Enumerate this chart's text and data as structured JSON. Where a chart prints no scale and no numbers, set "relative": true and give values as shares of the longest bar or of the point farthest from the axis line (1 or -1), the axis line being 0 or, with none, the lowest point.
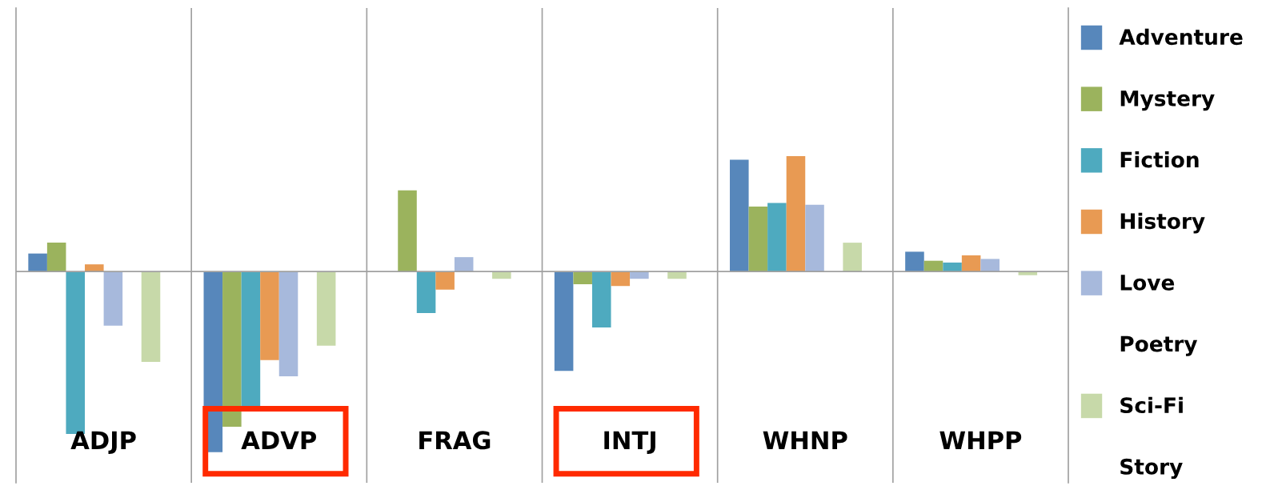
{
  "chart_data": {
    "type": "bar",
    "relative": true,
    "grid": "x",
    "legend": "right",
    "categories": [
      "ADJP",
      "ADVP",
      "FRAG",
      "INTJ",
      "WHNP",
      "WHPP"
    ],
    "series": [
      {
        "name": "Adventure",
        "color": "#5787bb",
        "values": [
          0.1,
          -1,
          0,
          -0.55,
          0.62,
          0.11
        ]
      },
      {
        "name": "Mystery",
        "color": "#9bb35d",
        "values": [
          0.16,
          -0.86,
          0.45,
          -0.07,
          0.36,
          0.06
        ]
      },
      {
        "name": "Fiction",
        "color": "#4eaabf",
        "values": [
          -0.9,
          -0.75,
          -0.23,
          -0.31,
          0.38,
          0.05
        ]
      },
      {
        "name": "History",
        "color": "#e89a53",
        "values": [
          0.04,
          -0.49,
          -0.1,
          -0.08,
          0.64,
          0.09
        ]
      },
      {
        "name": "Love",
        "color": "#a7b9dc",
        "values": [
          -0.3,
          -0.58,
          0.08,
          -0.04,
          0.37,
          0.07
        ]
      },
      {
        "name": "Poetry",
        "values": [
          null,
          null,
          null,
          null,
          null,
          null
        ]
      },
      {
        "name": "Sci-Fi",
        "color": "#c7d9a9",
        "values": [
          -0.5,
          -0.41,
          -0.04,
          -0.04,
          0.16,
          -0.02
        ]
      },
      {
        "name": "Story",
        "values": [
          null,
          null,
          null,
          null,
          null,
          null
        ]
      }
    ]
  }
}
